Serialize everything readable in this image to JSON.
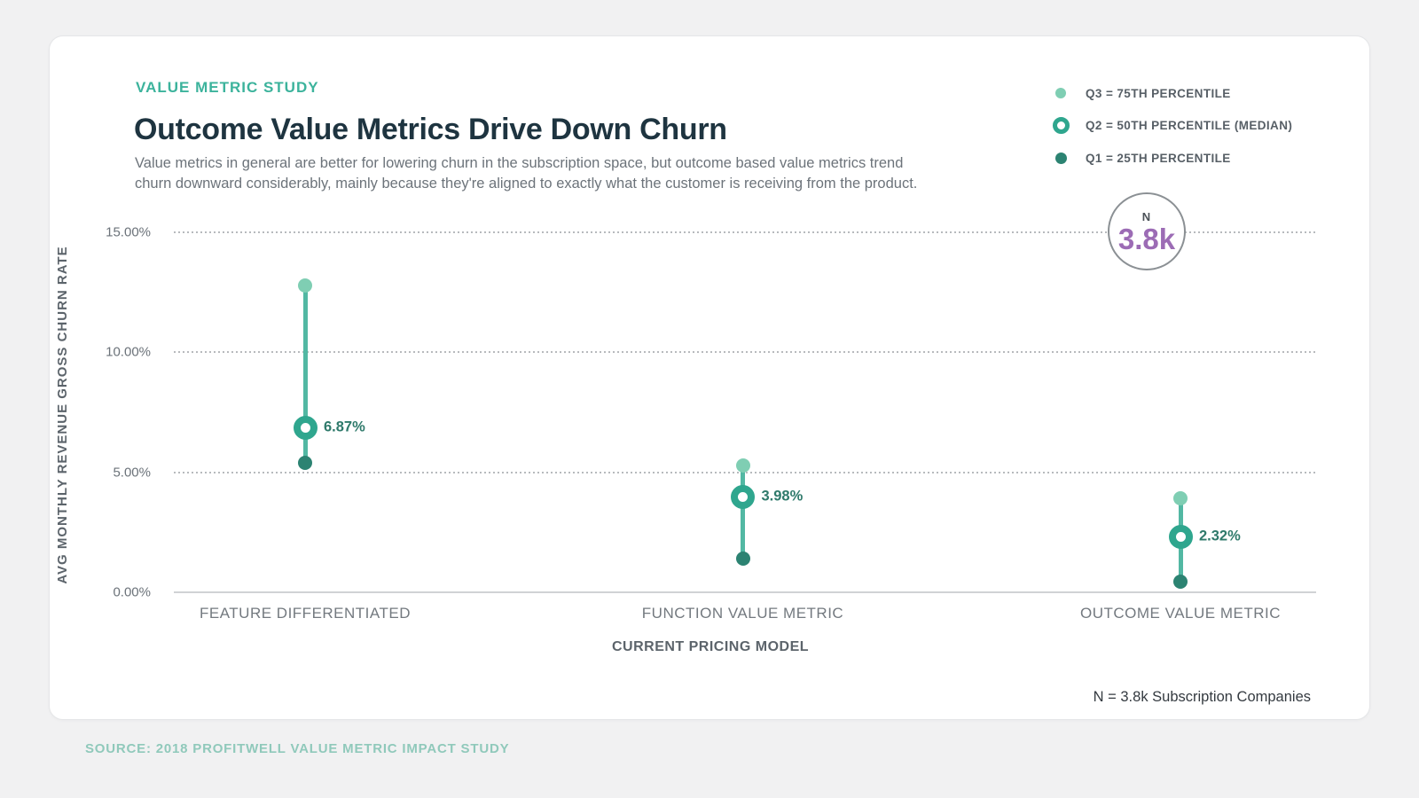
{
  "header": {
    "eyebrow": "VALUE METRIC STUDY",
    "title": "Outcome Value Metrics Drive Down Churn",
    "subtitle": "Value metrics in general are better for lowering churn in the subscription space, but outcome based value metrics trend churn downward considerably, mainly because they're aligned to exactly what the customer is receiving from the product."
  },
  "legend": {
    "items": [
      {
        "label": "Q3 = 75TH PERCENTILE",
        "marker": "dot-light"
      },
      {
        "label": "Q2 = 50TH PERCENTILE (MEDIAN)",
        "marker": "ring"
      },
      {
        "label": "Q1 = 25TH PERCENTILE",
        "marker": "dot-dark"
      }
    ]
  },
  "sample_badge": {
    "label": "N",
    "value": "3.8k"
  },
  "chart_data": {
    "type": "scatter",
    "subtype": "percentile-range-lollipop",
    "categories": [
      "FEATURE DIFFERENTIATED",
      "FUNCTION VALUE METRIC",
      "OUTCOME VALUE METRIC"
    ],
    "series": [
      {
        "name": "Q3 = 75TH PERCENTILE",
        "values": [
          12.8,
          5.3,
          3.9
        ]
      },
      {
        "name": "Q2 = 50TH PERCENTILE (MEDIAN)",
        "values": [
          6.87,
          3.98,
          2.32
        ],
        "labels": [
          "6.87%",
          "3.98%",
          "2.32%"
        ]
      },
      {
        "name": "Q1 = 25TH PERCENTILE",
        "values": [
          5.4,
          1.4,
          0.45
        ]
      }
    ],
    "title": "Outcome Value Metrics Drive Down Churn",
    "xlabel": "CURRENT PRICING MODEL",
    "ylabel": "AVG MONTHLY REVENUE GROSS CHURN RATE",
    "ylim": [
      0,
      15
    ],
    "yticks": [
      {
        "label": "15.00%",
        "value": 15
      },
      {
        "label": "10.00%",
        "value": 10
      },
      {
        "label": "5.00%",
        "value": 5
      },
      {
        "label": "0.00%",
        "value": 0
      }
    ],
    "grid": "dotted horizontal, zero axis solid",
    "legend_position": "top-right"
  },
  "footer": {
    "note": "N = 3.8k Subscription Companies",
    "source": "SOURCE: 2018 PROFITWELL VALUE METRIC IMPACT STUDY"
  },
  "colors": {
    "accent_teal": "#3cb39c",
    "line_teal": "#52b8a3",
    "q3_fill": "#7fceb3",
    "q2_ring": "#2fa68e",
    "q1_fill": "#2c8372",
    "value_label": "#2f7a6b",
    "title_text": "#1e3440",
    "body_text": "#6c737a",
    "n_value_purple": "#9c6cb5",
    "source_text": "#90c9bb"
  }
}
